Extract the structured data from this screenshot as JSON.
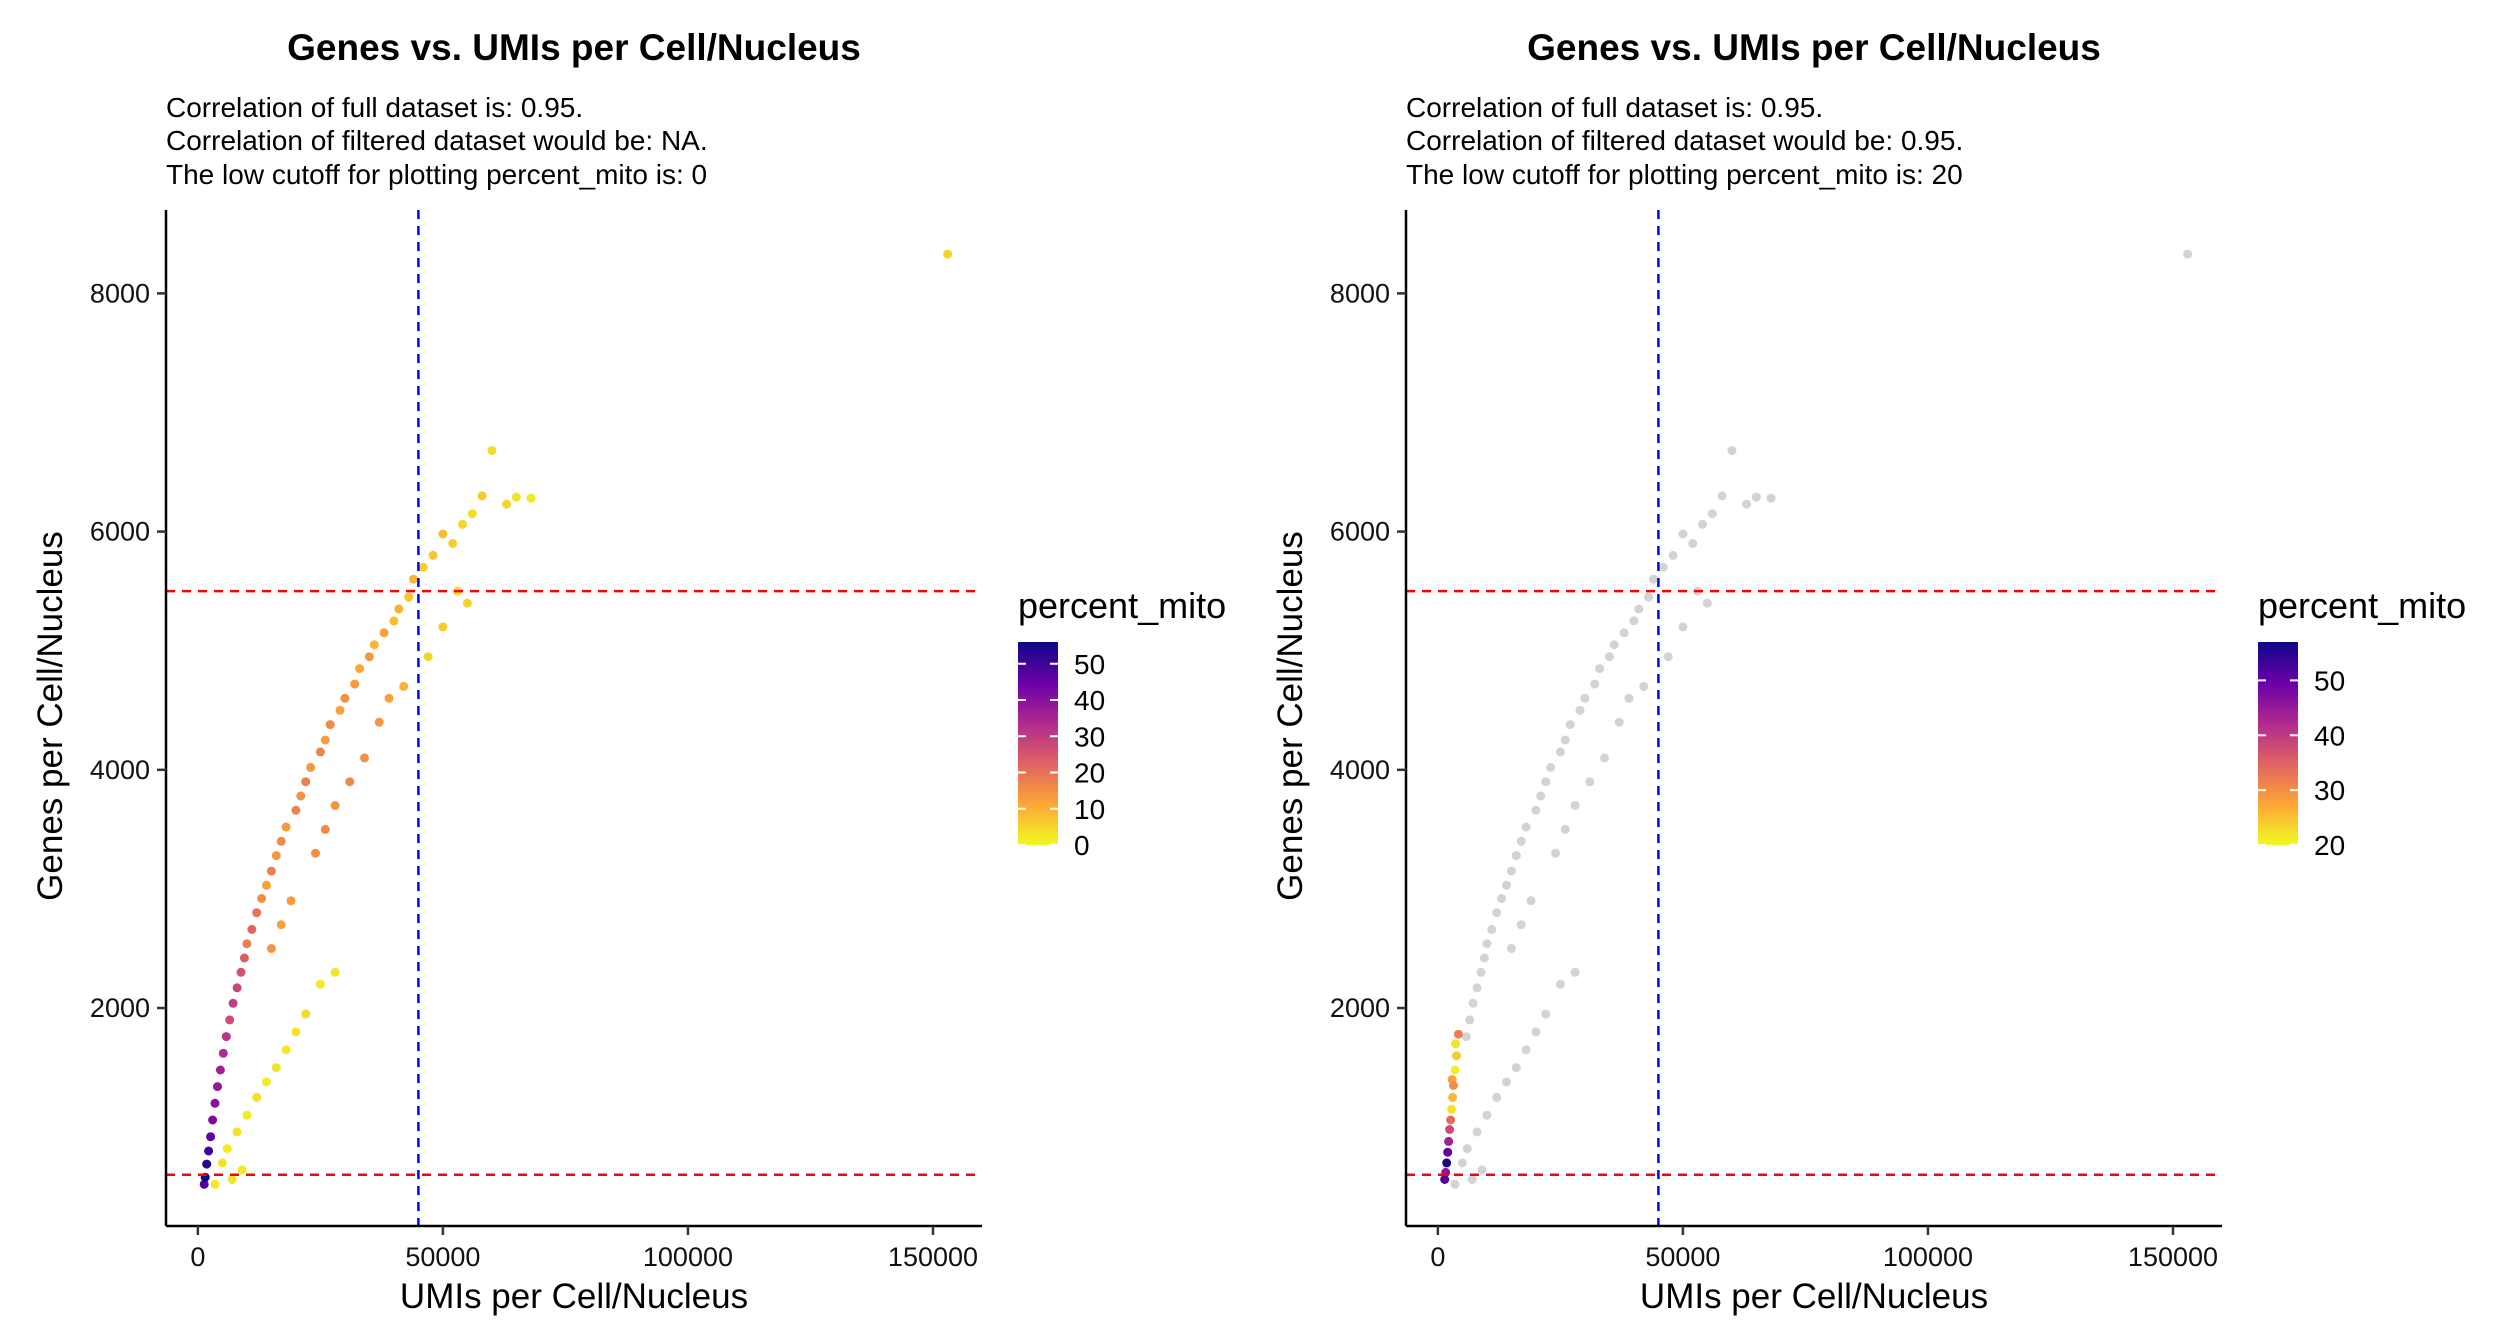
{
  "chart_data": [
    {
      "type": "scatter",
      "title": "Genes vs. UMIs per Cell/Nucleus",
      "subtitle_lines": [
        "Correlation of full dataset is: 0.95.",
        "Correlation of filtered dataset would be: NA.",
        "The low cutoff for plotting percent_mito is: 0"
      ],
      "xlabel": "UMIs per Cell/Nucleus",
      "ylabel": "Genes per Cell/Nucleus",
      "xlim": [
        -6500,
        160000
      ],
      "ylim": [
        170,
        8700
      ],
      "xticks": [
        0,
        50000,
        100000,
        150000
      ],
      "yticks": [
        2000,
        4000,
        6000,
        8000
      ],
      "vline_x": 45000,
      "hlines_y": [
        5500,
        600
      ],
      "vline_color": "#0000ff",
      "hline_color": "#ff0000",
      "legend": {
        "title": "percent_mito",
        "ticks": [
          0,
          10,
          20,
          30,
          40,
          50
        ],
        "range": [
          0,
          56
        ],
        "placement": "right",
        "colors": [
          "#f0f921",
          "#fca636",
          "#e16462",
          "#b12a90",
          "#6a00a8",
          "#0d0887"
        ]
      },
      "points_note": "dense cloud; representative points",
      "points": [
        [
          153000,
          8330,
          5
        ],
        [
          60000,
          6680,
          4
        ],
        [
          58000,
          6300,
          6
        ],
        [
          65000,
          6290,
          3
        ],
        [
          68000,
          6280,
          2
        ],
        [
          63000,
          6230,
          5
        ],
        [
          56000,
          6150,
          4
        ],
        [
          54000,
          6060,
          5
        ],
        [
          50000,
          5980,
          8
        ],
        [
          52000,
          5900,
          6
        ],
        [
          48000,
          5800,
          7
        ],
        [
          46000,
          5700,
          6
        ],
        [
          44000,
          5600,
          9
        ],
        [
          43000,
          5450,
          7
        ],
        [
          41000,
          5350,
          10
        ],
        [
          40000,
          5250,
          8
        ],
        [
          38000,
          5150,
          12
        ],
        [
          36000,
          5050,
          9
        ],
        [
          35000,
          4950,
          14
        ],
        [
          33000,
          4850,
          11
        ],
        [
          32000,
          4720,
          13
        ],
        [
          30000,
          4600,
          15
        ],
        [
          29000,
          4500,
          12
        ],
        [
          27000,
          4380,
          16
        ],
        [
          26000,
          4250,
          13
        ],
        [
          25000,
          4150,
          17
        ],
        [
          23000,
          4020,
          14
        ],
        [
          22000,
          3900,
          18
        ],
        [
          21000,
          3780,
          15
        ],
        [
          20000,
          3660,
          17
        ],
        [
          18000,
          3520,
          13
        ],
        [
          17000,
          3400,
          16
        ],
        [
          16000,
          3280,
          14
        ],
        [
          15000,
          3150,
          18
        ],
        [
          14000,
          3030,
          12
        ],
        [
          13000,
          2920,
          15
        ],
        [
          12000,
          2800,
          20
        ],
        [
          11000,
          2660,
          22
        ],
        [
          10000,
          2540,
          18
        ],
        [
          9500,
          2420,
          24
        ],
        [
          8800,
          2300,
          26
        ],
        [
          8000,
          2170,
          28
        ],
        [
          7200,
          2040,
          30
        ],
        [
          6500,
          1900,
          27
        ],
        [
          5800,
          1760,
          32
        ],
        [
          5200,
          1620,
          34
        ],
        [
          4600,
          1480,
          36
        ],
        [
          4000,
          1340,
          38
        ],
        [
          3500,
          1200,
          40
        ],
        [
          3000,
          1060,
          42
        ],
        [
          2600,
          920,
          46
        ],
        [
          2200,
          800,
          50
        ],
        [
          1800,
          690,
          53
        ],
        [
          1500,
          580,
          56
        ],
        [
          1300,
          520,
          48
        ],
        [
          28000,
          2300,
          3
        ],
        [
          25000,
          2200,
          2
        ],
        [
          22000,
          1950,
          4
        ],
        [
          20000,
          1800,
          3
        ],
        [
          18000,
          1650,
          2
        ],
        [
          16000,
          1500,
          3
        ],
        [
          14000,
          1380,
          2
        ],
        [
          12000,
          1250,
          3
        ],
        [
          10000,
          1100,
          2
        ],
        [
          8000,
          960,
          3
        ],
        [
          6000,
          820,
          2
        ],
        [
          5000,
          700,
          3
        ],
        [
          9000,
          640,
          2
        ],
        [
          7000,
          560,
          3
        ],
        [
          3500,
          520,
          2
        ],
        [
          47000,
          4950,
          5
        ],
        [
          50000,
          5200,
          6
        ],
        [
          53000,
          5500,
          4
        ],
        [
          55000,
          5400,
          5
        ],
        [
          42000,
          4700,
          10
        ],
        [
          39000,
          4600,
          12
        ],
        [
          37000,
          4400,
          14
        ],
        [
          34000,
          4100,
          15
        ],
        [
          31000,
          3900,
          16
        ],
        [
          28000,
          3700,
          14
        ],
        [
          26000,
          3500,
          16
        ],
        [
          24000,
          3300,
          15
        ],
        [
          19000,
          2900,
          13
        ],
        [
          17000,
          2700,
          12
        ],
        [
          15000,
          2500,
          14
        ]
      ]
    },
    {
      "type": "scatter",
      "title": "Genes vs. UMIs per Cell/Nucleus",
      "subtitle_lines": [
        "Correlation of full dataset is: 0.95.",
        "Correlation of filtered dataset would be: 0.95.",
        "The low cutoff for plotting percent_mito is: 20"
      ],
      "xlabel": "UMIs per Cell/Nucleus",
      "ylabel": "Genes per Cell/Nucleus",
      "xlim": [
        -6500,
        160000
      ],
      "ylim": [
        170,
        8700
      ],
      "xticks": [
        0,
        50000,
        100000,
        150000
      ],
      "yticks": [
        2000,
        4000,
        6000,
        8000
      ],
      "vline_x": 45000,
      "hlines_y": [
        5500,
        600
      ],
      "vline_color": "#0000ff",
      "hline_color": "#ff0000",
      "grey_color": "#d3d3d3",
      "legend": {
        "title": "percent_mito",
        "ticks": [
          20,
          30,
          40,
          50
        ],
        "range": [
          20,
          57
        ],
        "placement": "right",
        "colors": [
          "#f0f921",
          "#fca636",
          "#e16462",
          "#b12a90",
          "#6a00a8",
          "#0d0887"
        ]
      },
      "points_note": "points with percent_mito below 20 drawn grey",
      "points": [
        [
          153000,
          8330,
          5
        ],
        [
          60000,
          6680,
          4
        ],
        [
          58000,
          6300,
          6
        ],
        [
          65000,
          6290,
          3
        ],
        [
          68000,
          6280,
          2
        ],
        [
          63000,
          6230,
          5
        ],
        [
          56000,
          6150,
          4
        ],
        [
          54000,
          6060,
          5
        ],
        [
          50000,
          5980,
          8
        ],
        [
          52000,
          5900,
          6
        ],
        [
          48000,
          5800,
          7
        ],
        [
          46000,
          5700,
          6
        ],
        [
          44000,
          5600,
          9
        ],
        [
          43000,
          5450,
          7
        ],
        [
          41000,
          5350,
          10
        ],
        [
          40000,
          5250,
          8
        ],
        [
          38000,
          5150,
          12
        ],
        [
          36000,
          5050,
          9
        ],
        [
          35000,
          4950,
          14
        ],
        [
          33000,
          4850,
          11
        ],
        [
          32000,
          4720,
          13
        ],
        [
          30000,
          4600,
          15
        ],
        [
          29000,
          4500,
          12
        ],
        [
          27000,
          4380,
          16
        ],
        [
          26000,
          4250,
          13
        ],
        [
          25000,
          4150,
          17
        ],
        [
          23000,
          4020,
          14
        ],
        [
          22000,
          3900,
          18
        ],
        [
          21000,
          3780,
          15
        ],
        [
          20000,
          3660,
          17
        ],
        [
          18000,
          3520,
          13
        ],
        [
          17000,
          3400,
          16
        ],
        [
          16000,
          3280,
          14
        ],
        [
          15000,
          3150,
          18
        ],
        [
          14000,
          3030,
          12
        ],
        [
          13000,
          2920,
          15
        ],
        [
          12000,
          2800,
          14
        ],
        [
          11000,
          2660,
          12
        ],
        [
          10000,
          2540,
          18
        ],
        [
          9500,
          2420,
          16
        ],
        [
          8800,
          2300,
          15
        ],
        [
          8000,
          2170,
          13
        ],
        [
          7200,
          2040,
          17
        ],
        [
          6500,
          1900,
          15
        ],
        [
          5800,
          1760,
          16
        ],
        [
          28000,
          2300,
          3
        ],
        [
          25000,
          2200,
          2
        ],
        [
          22000,
          1950,
          4
        ],
        [
          20000,
          1800,
          3
        ],
        [
          18000,
          1650,
          2
        ],
        [
          16000,
          1500,
          3
        ],
        [
          14000,
          1380,
          2
        ],
        [
          12000,
          1250,
          3
        ],
        [
          10000,
          1100,
          2
        ],
        [
          8000,
          960,
          3
        ],
        [
          6000,
          820,
          2
        ],
        [
          5000,
          700,
          3
        ],
        [
          9000,
          640,
          2
        ],
        [
          7000,
          560,
          3
        ],
        [
          3500,
          520,
          2
        ],
        [
          47000,
          4950,
          5
        ],
        [
          50000,
          5200,
          6
        ],
        [
          53000,
          5500,
          4
        ],
        [
          55000,
          5400,
          5
        ],
        [
          42000,
          4700,
          10
        ],
        [
          39000,
          4600,
          12
        ],
        [
          37000,
          4400,
          14
        ],
        [
          34000,
          4100,
          15
        ],
        [
          31000,
          3900,
          16
        ],
        [
          28000,
          3700,
          14
        ],
        [
          26000,
          3500,
          16
        ],
        [
          24000,
          3300,
          15
        ],
        [
          19000,
          2900,
          13
        ],
        [
          17000,
          2700,
          12
        ],
        [
          15000,
          2500,
          14
        ],
        [
          4200,
          1780,
          32
        ],
        [
          3800,
          1600,
          24
        ],
        [
          3500,
          1480,
          21
        ],
        [
          3200,
          1350,
          30
        ],
        [
          3000,
          1250,
          26
        ],
        [
          2800,
          1150,
          22
        ],
        [
          2600,
          1060,
          34
        ],
        [
          2400,
          980,
          38
        ],
        [
          2200,
          880,
          44
        ],
        [
          2000,
          790,
          50
        ],
        [
          1800,
          700,
          56
        ],
        [
          1600,
          620,
          46
        ],
        [
          1400,
          560,
          52
        ],
        [
          3600,
          1700,
          22
        ],
        [
          2900,
          1400,
          28
        ]
      ]
    }
  ]
}
